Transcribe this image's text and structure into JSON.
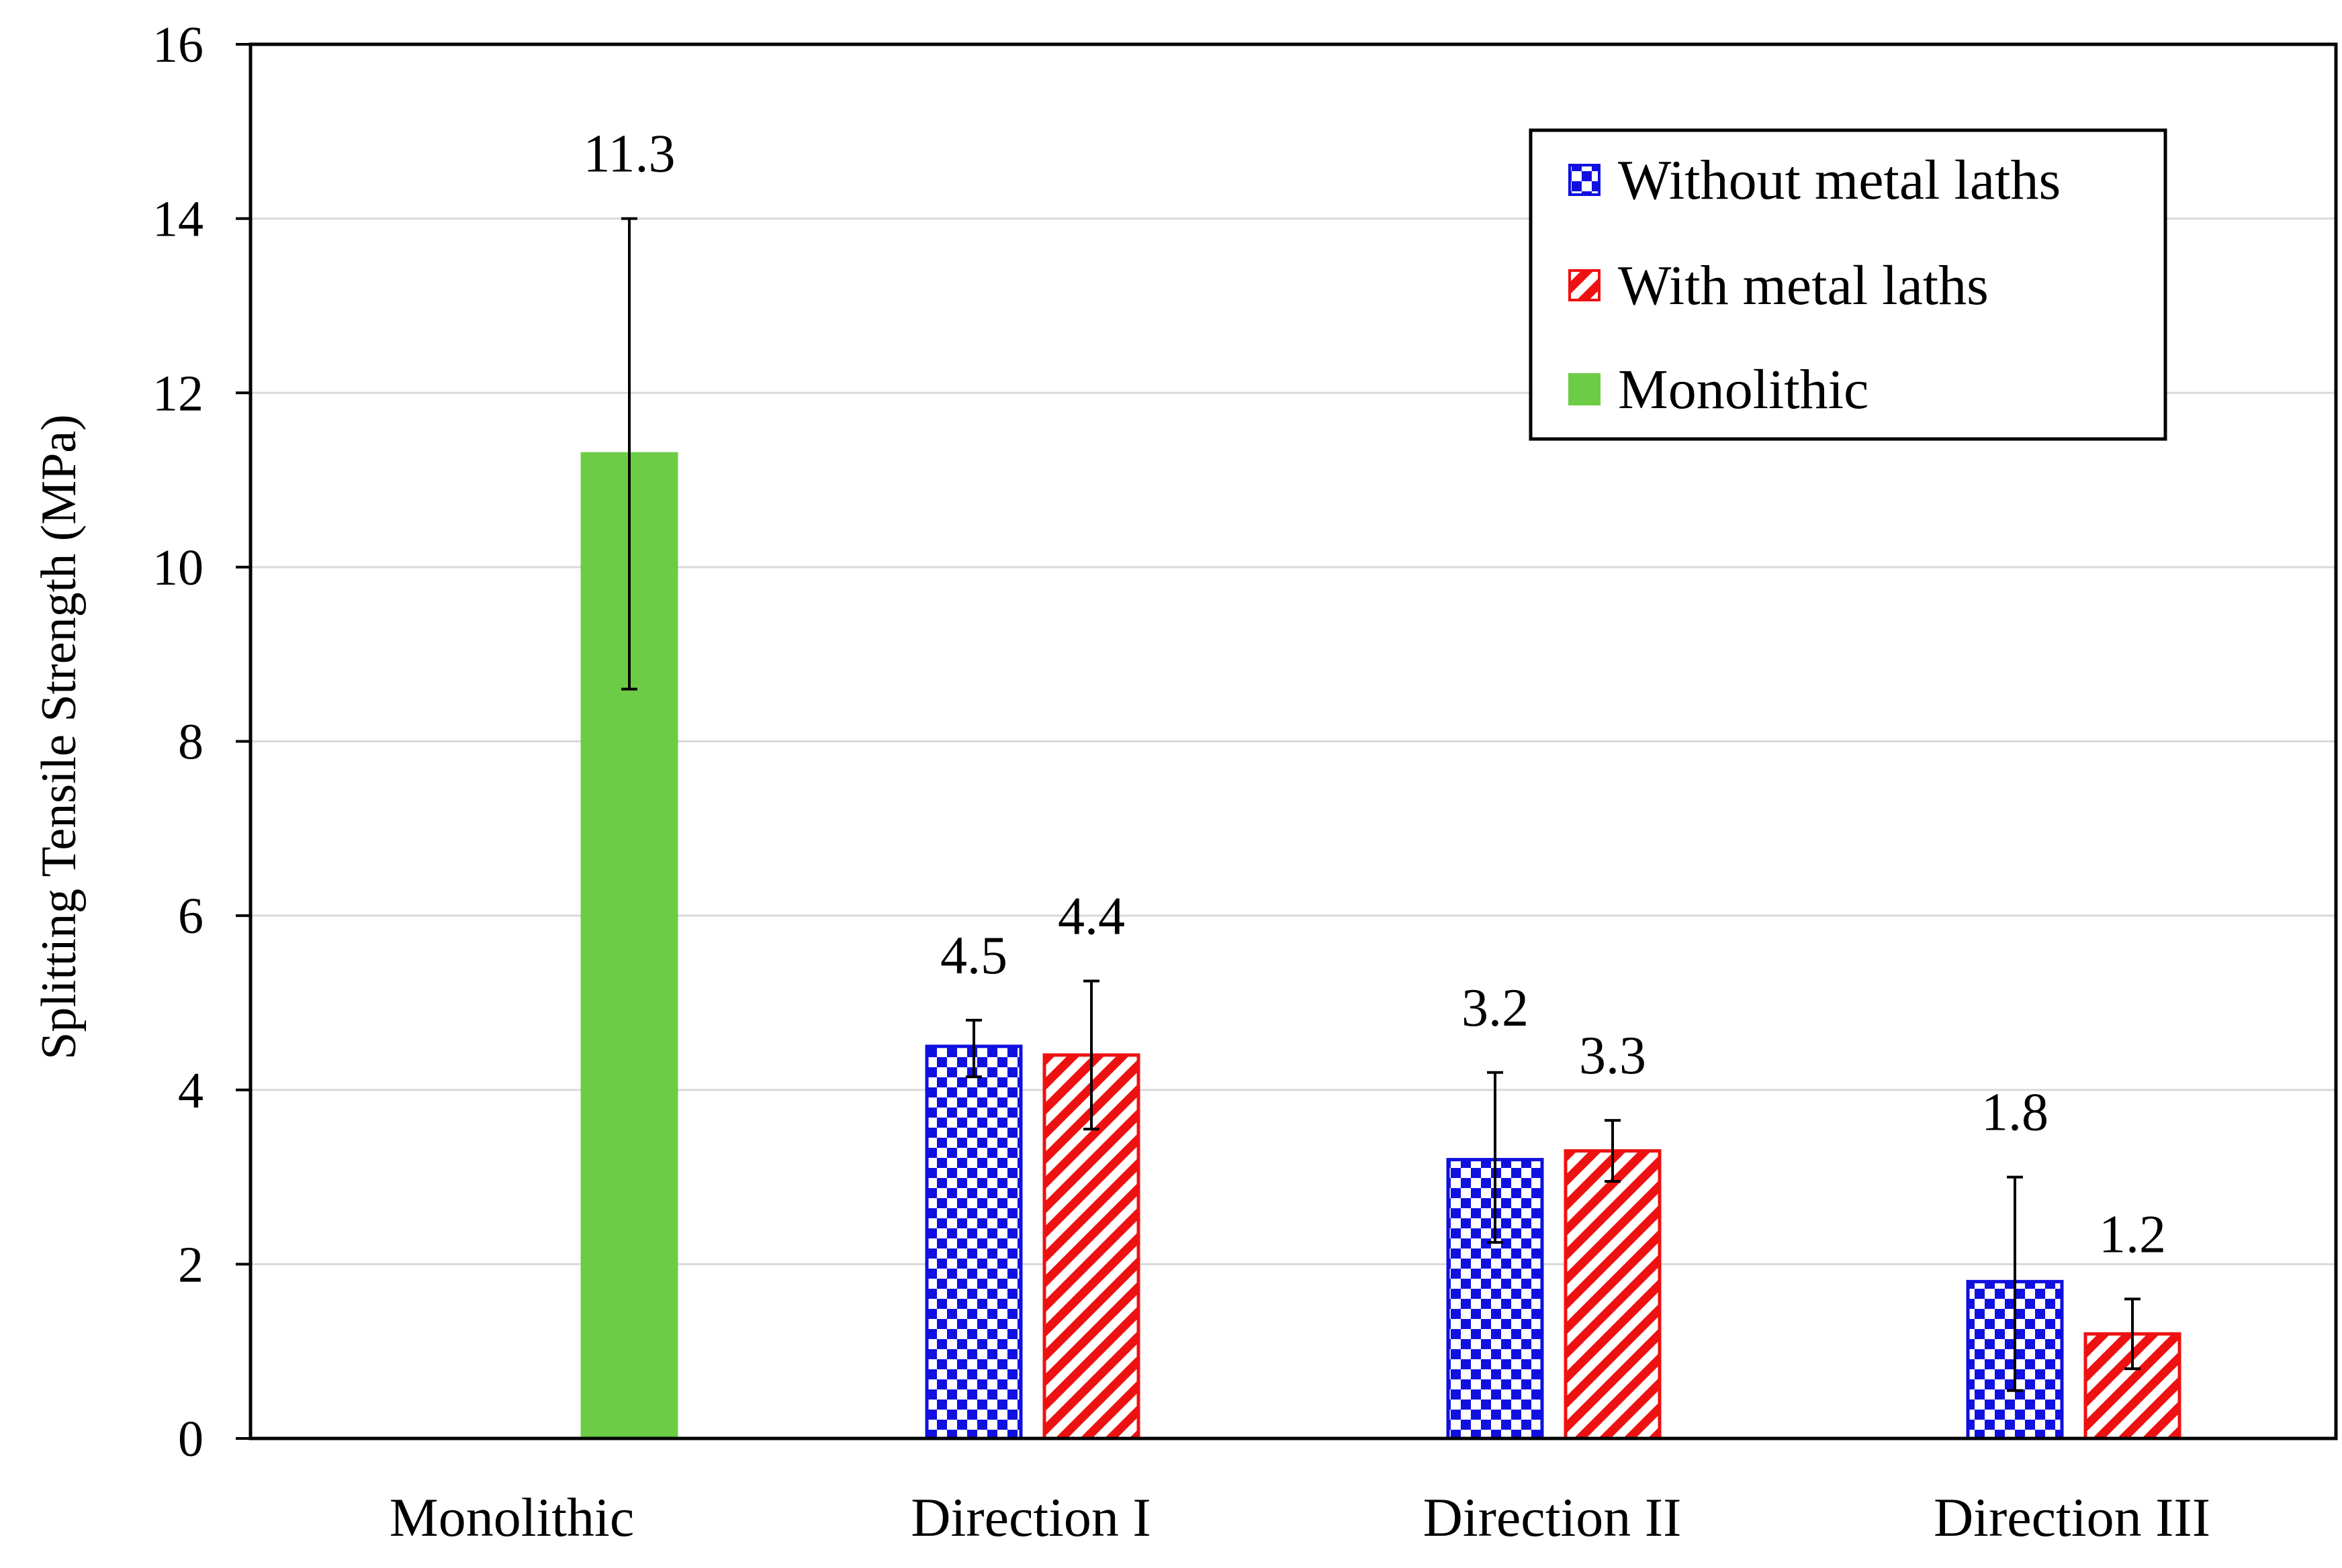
{
  "chart_data": {
    "type": "bar",
    "title": "",
    "xlabel": "",
    "ylabel": "Splitting Tensile Strength (MPa)",
    "ylim": [
      0,
      16
    ],
    "yticks": [
      0,
      2,
      4,
      6,
      8,
      10,
      12,
      14,
      16
    ],
    "grid": "horizontal",
    "legend_position": "top-right",
    "categories": [
      "Monolithic",
      "Direction I",
      "Direction II",
      "Direction III"
    ],
    "series": [
      {
        "name": "Without metal laths",
        "color": "#1010e0",
        "pattern": "checkerboard",
        "values": [
          null,
          4.5,
          3.2,
          1.8
        ],
        "error_low": [
          null,
          4.15,
          2.25,
          0.55
        ],
        "error_high": [
          null,
          4.8,
          4.2,
          3.0
        ],
        "labels": [
          "",
          "4.5",
          "3.2",
          "1.8"
        ]
      },
      {
        "name": "With metal laths",
        "color": "#ee1111",
        "pattern": "diagonal-stripes",
        "values": [
          null,
          4.4,
          3.3,
          1.2
        ],
        "error_low": [
          null,
          3.55,
          2.95,
          0.8
        ],
        "error_high": [
          null,
          5.25,
          3.65,
          1.6
        ],
        "labels": [
          "",
          "4.4",
          "3.3",
          "1.2"
        ]
      },
      {
        "name": "Monolithic",
        "color": "#6dcc45",
        "pattern": "solid",
        "values": [
          11.3,
          null,
          null,
          null
        ],
        "error_low": [
          8.6,
          null,
          null,
          null
        ],
        "error_high": [
          14.0,
          null,
          null,
          null
        ],
        "labels": [
          "11.3",
          "",
          "",
          ""
        ]
      }
    ]
  }
}
